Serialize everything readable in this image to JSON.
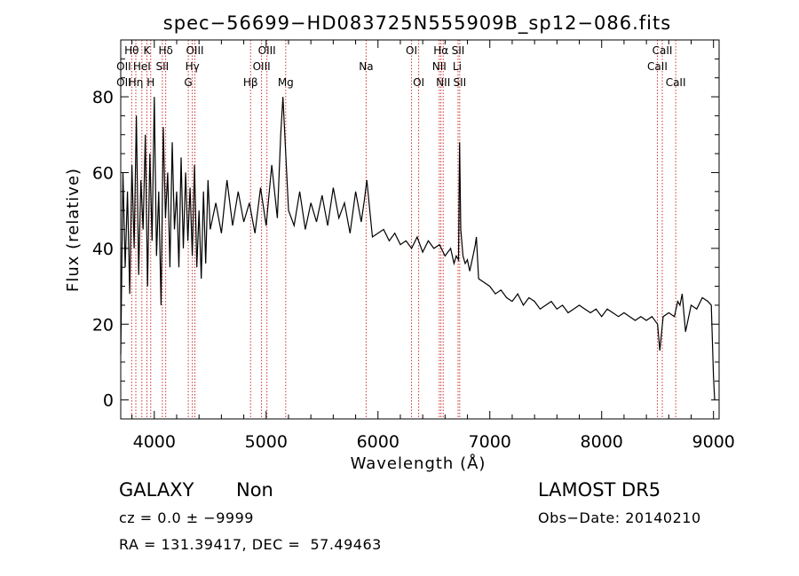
{
  "chart_data": {
    "type": "line",
    "title": "spec−56699−HD083725N555909B_sp12−086.fits",
    "xlabel": "Wavelength (Å)",
    "ylabel": "Flux (relative)",
    "xlim": [
      3700,
      9050
    ],
    "ylim": [
      -5,
      95
    ],
    "xticks": [
      4000,
      5000,
      6000,
      7000,
      8000,
      9000
    ],
    "yticks": [
      0,
      20,
      40,
      60,
      80
    ],
    "line_color": "#000000",
    "marker_color": "#cc3333",
    "series": [
      {
        "x": [
          3700,
          3720,
          3740,
          3760,
          3780,
          3800,
          3820,
          3840,
          3860,
          3880,
          3900,
          3920,
          3940,
          3960,
          3980,
          4000,
          4020,
          4040,
          4060,
          4080,
          4100,
          4120,
          4140,
          4160,
          4180,
          4200,
          4220,
          4240,
          4260,
          4280,
          4300,
          4320,
          4340,
          4360,
          4380,
          4400,
          4420,
          4440,
          4460,
          4480,
          4500,
          4550,
          4600,
          4650,
          4700,
          4750,
          4800,
          4850,
          4900,
          4950,
          5000,
          5050,
          5100,
          5130,
          5150,
          5200,
          5250,
          5300,
          5350,
          5400,
          5450,
          5500,
          5550,
          5600,
          5650,
          5700,
          5750,
          5800,
          5850,
          5880,
          5900,
          5950,
          6000,
          6050,
          6100,
          6150,
          6200,
          6250,
          6300,
          6350,
          6400,
          6450,
          6500,
          6550,
          6600,
          6650,
          6680,
          6700,
          6720,
          6730,
          6740,
          6760,
          6780,
          6800,
          6820,
          6850,
          6870,
          6880,
          6900,
          6950,
          7000,
          7050,
          7100,
          7150,
          7200,
          7250,
          7300,
          7350,
          7400,
          7450,
          7500,
          7550,
          7600,
          7650,
          7700,
          7750,
          7800,
          7850,
          7900,
          7950,
          8000,
          8050,
          8100,
          8150,
          8200,
          8250,
          8300,
          8350,
          8400,
          8450,
          8500,
          8520,
          8550,
          8600,
          8650,
          8680,
          8700,
          8720,
          8750,
          8800,
          8850,
          8900,
          8950,
          8980,
          9000,
          9010
        ],
        "values": [
          12,
          60,
          35,
          55,
          28,
          62,
          40,
          75,
          33,
          58,
          45,
          70,
          30,
          65,
          42,
          80,
          38,
          55,
          25,
          72,
          48,
          60,
          35,
          68,
          45,
          55,
          35,
          64,
          40,
          60,
          42,
          56,
          38,
          62,
          35,
          50,
          32,
          55,
          36,
          58,
          45,
          52,
          44,
          58,
          46,
          55,
          47,
          52,
          44,
          56,
          46,
          62,
          48,
          70,
          80,
          50,
          46,
          55,
          45,
          52,
          47,
          54,
          46,
          56,
          48,
          52,
          44,
          55,
          47,
          53,
          58,
          43,
          44,
          45,
          42,
          44,
          41,
          42,
          40,
          43,
          39,
          42,
          40,
          41,
          38,
          40,
          36,
          38,
          37,
          68,
          45,
          38,
          36,
          37,
          34,
          38,
          41,
          43,
          32,
          31,
          30,
          28,
          29,
          27,
          26,
          28,
          25,
          27,
          26,
          24,
          25,
          26,
          24,
          25,
          23,
          24,
          25,
          24,
          23,
          24,
          22,
          24,
          23,
          22,
          23,
          22,
          21,
          22,
          21,
          22,
          20,
          13,
          22,
          23,
          22,
          26,
          25,
          28,
          18,
          25,
          24,
          27,
          26,
          25,
          6,
          0
        ]
      }
    ],
    "lines": [
      {
        "name": "Hθ",
        "x": 3798,
        "row": 0
      },
      {
        "name": "OII",
        "x": 3727,
        "row": 1
      },
      {
        "name": "OII",
        "x": 3727,
        "row": 2
      },
      {
        "name": "K",
        "x": 3934,
        "row": 0
      },
      {
        "name": "HeI",
        "x": 3889,
        "row": 1
      },
      {
        "name": "Hη",
        "x": 3835,
        "row": 2
      },
      {
        "name": "Hδ",
        "x": 4102,
        "row": 0
      },
      {
        "name": "SII",
        "x": 4072,
        "row": 1
      },
      {
        "name": "H",
        "x": 3968,
        "row": 2
      },
      {
        "name": "OIII",
        "x": 4363,
        "row": 0
      },
      {
        "name": "Hγ",
        "x": 4340,
        "row": 1
      },
      {
        "name": "G",
        "x": 4304,
        "row": 2
      },
      {
        "name": "OIII",
        "x": 5007,
        "row": 0
      },
      {
        "name": "OIII",
        "x": 4959,
        "row": 1
      },
      {
        "name": "Hβ",
        "x": 4861,
        "row": 2
      },
      {
        "name": "Mg",
        "x": 5175,
        "row": 2
      },
      {
        "name": "Na",
        "x": 5894,
        "row": 1
      },
      {
        "name": "OI",
        "x": 6300,
        "row": 0
      },
      {
        "name": "OI",
        "x": 6364,
        "row": 2
      },
      {
        "name": "Hα",
        "x": 6563,
        "row": 0
      },
      {
        "name": "NII",
        "x": 6548,
        "row": 1
      },
      {
        "name": "NII",
        "x": 6583,
        "row": 2
      },
      {
        "name": "SII",
        "x": 6716,
        "row": 0
      },
      {
        "name": "Li",
        "x": 6708,
        "row": 1
      },
      {
        "name": "SII",
        "x": 6731,
        "row": 2
      },
      {
        "name": "CaII",
        "x": 8542,
        "row": 0
      },
      {
        "name": "CaII",
        "x": 8498,
        "row": 1
      },
      {
        "name": "CaII",
        "x": 8662,
        "row": 2
      }
    ],
    "line_markers_x": [
      3798,
      3835,
      3889,
      3934,
      3968,
      4072,
      4102,
      4304,
      4340,
      4363,
      4861,
      4959,
      5007,
      5175,
      5894,
      6300,
      6364,
      6548,
      6563,
      6583,
      6716,
      6731,
      8498,
      8542,
      8662
    ]
  },
  "info": {
    "class_label": "GALAXY",
    "subclass_label": "Non",
    "cz_text": "cz = 0.0 ± −9999",
    "radec_text": "RA = 131.39417, DEC =  57.49463",
    "survey": "LAMOST DR5",
    "obs_date": "Obs−Date: 20140210"
  }
}
